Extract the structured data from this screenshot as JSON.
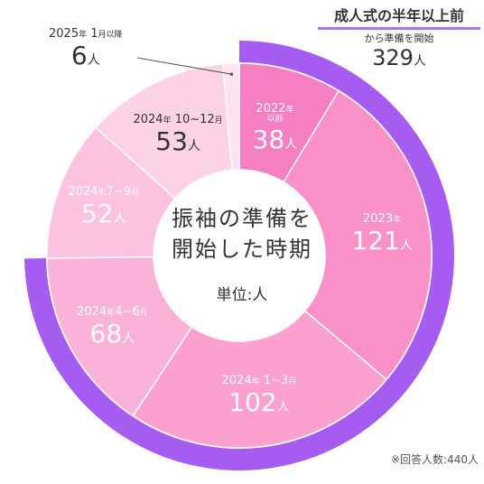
{
  "callout": {
    "title": "成人式の半年以上前",
    "subtitle": "から準備を開始",
    "value": "329",
    "unit": "人"
  },
  "center": {
    "line1": "振袖の準備を",
    "line2": "開始した時期",
    "unit_label": "単位:人"
  },
  "note": "※回答人数:440人",
  "colors": {
    "outer_ring": "#a65cf0",
    "accent_underline": "#a974ee",
    "text": "#333333"
  },
  "chart_data": {
    "type": "pie",
    "title": "振袖の準備を開始した時期",
    "unit": "人",
    "total_respondents": 440,
    "categories": [
      "2022年以前",
      "2023年",
      "2024年1~3月",
      "2024年4~6月",
      "2024年7~9月",
      "2024年10~12月",
      "2025年1月以降"
    ],
    "values": [
      38,
      121,
      102,
      68,
      52,
      53,
      6
    ],
    "colors": [
      "#f57fc0",
      "#fa91c8",
      "#fba0cf",
      "#fbb2d8",
      "#fcc2e0",
      "#fdd2e7",
      "#fee2ef"
    ],
    "highlight": {
      "label": "成人式の半年以上前から準備を開始",
      "value": 329,
      "covers": [
        "2022年以前",
        "2023年",
        "2024年1~3月",
        "2024年4~6月"
      ]
    },
    "labels": [
      {
        "cat": "2022",
        "unit": "年",
        "sub": "以前",
        "val": "38",
        "cls": ""
      },
      {
        "cat": "2023",
        "unit": "年",
        "sub": "",
        "val": "121",
        "cls": ""
      },
      {
        "cat": "2024",
        "unit": "年",
        "cat2": " 1~3",
        "unit2": "月",
        "sub": "",
        "val": "102",
        "cls": ""
      },
      {
        "cat": "2024",
        "unit": "年",
        "cat2": "4~6",
        "unit2": "月",
        "sub": "",
        "val": "68",
        "cls": ""
      },
      {
        "cat": "2024",
        "unit": "年",
        "cat2": "7~9",
        "unit2": "月",
        "sub": "",
        "val": "52",
        "cls": ""
      },
      {
        "cat": "2024",
        "unit": "年",
        "cat2": " 10~12",
        "unit2": "月",
        "sub": "",
        "val": "53",
        "cls": "dark"
      },
      {
        "cat": "2025",
        "unit": "年",
        "cat2": " 1",
        "unit2": "月以降",
        "sub": "",
        "val": "6",
        "cls": "dark"
      }
    ]
  }
}
